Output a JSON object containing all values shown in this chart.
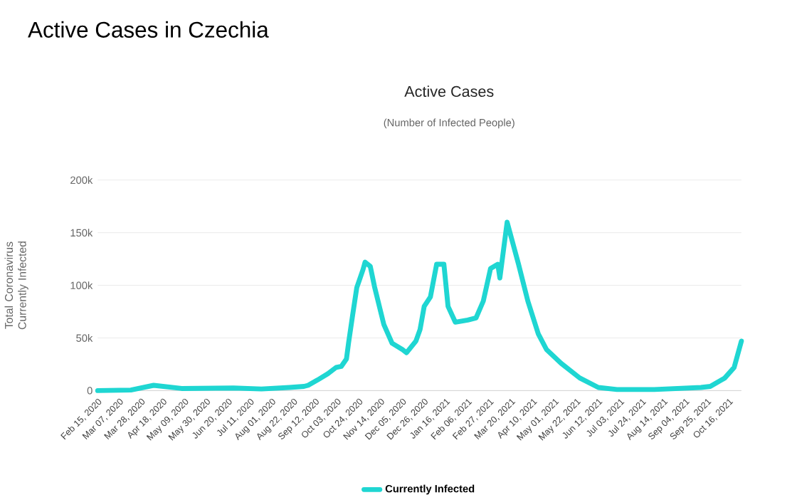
{
  "chart_data": {
    "type": "line",
    "title": "Active Cases in Czechia",
    "subtitle": "Active Cases",
    "annotations": [
      "(Number of Infected People)"
    ],
    "ylabel": "Total Coronavirus Currently Infected",
    "x": [
      "2020-02-15",
      "2020-03-18",
      "2020-04-09",
      "2020-05-06",
      "2020-06-25",
      "2020-07-22",
      "2020-08-18",
      "2020-09-01",
      "2020-09-05",
      "2020-09-14",
      "2020-09-24",
      "2020-10-02",
      "2020-10-07",
      "2020-10-12",
      "2020-10-14",
      "2020-10-18",
      "2020-10-22",
      "2020-10-28",
      "2020-10-30",
      "2020-11-04",
      "2020-11-08",
      "2020-11-17",
      "2020-11-25",
      "2020-12-05",
      "2020-12-09",
      "2020-12-18",
      "2020-12-22",
      "2020-12-26",
      "2021-01-01",
      "2021-01-07",
      "2021-01-14",
      "2021-01-18",
      "2021-01-25",
      "2021-02-06",
      "2021-02-14",
      "2021-02-21",
      "2021-02-28",
      "2021-03-07",
      "2021-03-09",
      "2021-03-16",
      "2021-03-27",
      "2021-04-05",
      "2021-04-15",
      "2021-04-23",
      "2021-05-07",
      "2021-05-25",
      "2021-06-12",
      "2021-06-30",
      "2021-08-05",
      "2021-09-19",
      "2021-09-28",
      "2021-10-12",
      "2021-10-21",
      "2021-10-28"
    ],
    "series": [
      {
        "name": "Currently Infected",
        "color": "#1fd6d2",
        "values": [
          0,
          500,
          5000,
          2000,
          2500,
          1500,
          3000,
          4000,
          5000,
          10000,
          16000,
          22000,
          23000,
          30000,
          45000,
          72000,
          98000,
          115000,
          122000,
          118000,
          99000,
          63000,
          45000,
          39000,
          36000,
          47000,
          58000,
          80000,
          89000,
          120000,
          120000,
          80000,
          65000,
          67000,
          69000,
          85000,
          116000,
          120000,
          107000,
          160000,
          120000,
          85000,
          54000,
          39000,
          26000,
          12000,
          3000,
          1000,
          1000,
          3000,
          4000,
          12000,
          22000,
          47000
        ]
      }
    ],
    "xlim": [
      "2020-02-15",
      "2021-10-28"
    ],
    "xticks": [
      {
        "value": "2020-02-15",
        "label": "Feb 15, 2020"
      },
      {
        "value": "2020-03-07",
        "label": "Mar 07, 2020"
      },
      {
        "value": "2020-03-28",
        "label": "Mar 28, 2020"
      },
      {
        "value": "2020-04-18",
        "label": "Apr 18, 2020"
      },
      {
        "value": "2020-05-09",
        "label": "May 09, 2020"
      },
      {
        "value": "2020-05-30",
        "label": "May 30, 2020"
      },
      {
        "value": "2020-06-20",
        "label": "Jun 20, 2020"
      },
      {
        "value": "2020-07-11",
        "label": "Jul 11, 2020"
      },
      {
        "value": "2020-08-01",
        "label": "Aug 01, 2020"
      },
      {
        "value": "2020-08-22",
        "label": "Aug 22, 2020"
      },
      {
        "value": "2020-09-12",
        "label": "Sep 12, 2020"
      },
      {
        "value": "2020-10-03",
        "label": "Oct 03, 2020"
      },
      {
        "value": "2020-10-24",
        "label": "Oct 24, 2020"
      },
      {
        "value": "2020-11-14",
        "label": "Nov 14, 2020"
      },
      {
        "value": "2020-12-05",
        "label": "Dec 05, 2020"
      },
      {
        "value": "2020-12-26",
        "label": "Dec 26, 2020"
      },
      {
        "value": "2021-01-16",
        "label": "Jan 16, 2021"
      },
      {
        "value": "2021-02-06",
        "label": "Feb 06, 2021"
      },
      {
        "value": "2021-02-27",
        "label": "Feb 27, 2021"
      },
      {
        "value": "2021-03-20",
        "label": "Mar 20, 2021"
      },
      {
        "value": "2021-04-10",
        "label": "Apr 10, 2021"
      },
      {
        "value": "2021-05-01",
        "label": "May 01, 2021"
      },
      {
        "value": "2021-05-22",
        "label": "May 22, 2021"
      },
      {
        "value": "2021-06-12",
        "label": "Jun 12, 2021"
      },
      {
        "value": "2021-07-03",
        "label": "Jul 03, 2021"
      },
      {
        "value": "2021-07-24",
        "label": "Jul 24, 2021"
      },
      {
        "value": "2021-08-14",
        "label": "Aug 14, 2021"
      },
      {
        "value": "2021-09-04",
        "label": "Sep 04, 2021"
      },
      {
        "value": "2021-09-25",
        "label": "Sep 25, 2021"
      },
      {
        "value": "2021-10-16",
        "label": "Oct 16, 2021"
      }
    ],
    "ylim": [
      0,
      200000
    ],
    "yticks": [
      0,
      {
        "value": 50000,
        "label": "50k"
      },
      {
        "value": 100000,
        "label": "100k"
      },
      {
        "value": 150000,
        "label": "150k"
      },
      {
        "value": 200000,
        "label": "200k"
      }
    ],
    "grid": "y",
    "legend": "bottom",
    "marker": "none",
    "line_style": "solid"
  }
}
